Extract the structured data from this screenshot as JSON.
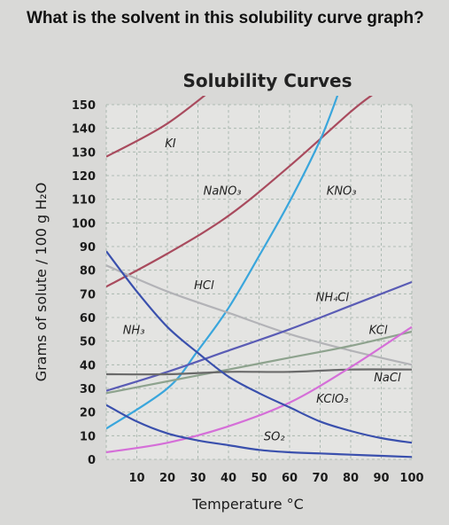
{
  "question": "What is the solvent in this solubility curve graph?",
  "chart_data": {
    "type": "line",
    "title": "Solubility Curves",
    "xlabel": "Temperature °C",
    "ylabel": "Grams of solute / 100 g H₂O",
    "xlim": [
      0,
      100
    ],
    "ylim": [
      0,
      150
    ],
    "x_ticks": [
      "10",
      "20",
      "30",
      "40",
      "50",
      "60",
      "70",
      "80",
      "90",
      "100"
    ],
    "y_ticks": [
      "0",
      "10",
      "20",
      "30",
      "40",
      "50",
      "60",
      "70",
      "80",
      "90",
      "100",
      "110",
      "120",
      "130",
      "140",
      "150"
    ],
    "grid": true,
    "series": [
      {
        "name": "KI",
        "color": "#a94b5e",
        "points": [
          [
            0,
            128
          ],
          [
            20,
            142
          ],
          [
            40,
            162
          ]
        ]
      },
      {
        "name": "NaNO₃",
        "color": "#a94b5e",
        "points": [
          [
            0,
            73
          ],
          [
            20,
            87
          ],
          [
            40,
            103
          ],
          [
            60,
            124
          ],
          [
            80,
            147
          ],
          [
            88,
            155
          ]
        ]
      },
      {
        "name": "KNO₃",
        "color": "#3aa6dc",
        "points": [
          [
            0,
            13
          ],
          [
            20,
            30
          ],
          [
            30,
            46
          ],
          [
            40,
            64
          ],
          [
            50,
            86
          ],
          [
            60,
            109
          ],
          [
            70,
            135
          ],
          [
            76,
            155
          ]
        ]
      },
      {
        "name": "HCl",
        "color": "#b3b3b7",
        "points": [
          [
            0,
            82
          ],
          [
            20,
            71
          ],
          [
            40,
            62
          ],
          [
            60,
            53
          ],
          [
            80,
            46
          ],
          [
            100,
            40
          ]
        ]
      },
      {
        "name": "NH₄Cl",
        "color": "#5a5cb5",
        "points": [
          [
            0,
            29
          ],
          [
            20,
            37
          ],
          [
            40,
            46
          ],
          [
            60,
            55
          ],
          [
            80,
            65
          ],
          [
            100,
            75
          ]
        ]
      },
      {
        "name": "KCl",
        "color": "#8ea38e",
        "points": [
          [
            0,
            28
          ],
          [
            20,
            33
          ],
          [
            40,
            38
          ],
          [
            60,
            43
          ],
          [
            80,
            48
          ],
          [
            100,
            54
          ]
        ]
      },
      {
        "name": "NaCl",
        "color": "#6a6a6a",
        "points": [
          [
            0,
            36
          ],
          [
            20,
            36
          ],
          [
            40,
            37
          ],
          [
            60,
            37
          ],
          [
            80,
            38
          ],
          [
            100,
            38
          ]
        ]
      },
      {
        "name": "KClO₃",
        "color": "#d56fd8",
        "points": [
          [
            0,
            3
          ],
          [
            20,
            7
          ],
          [
            40,
            14
          ],
          [
            60,
            24
          ],
          [
            80,
            39
          ],
          [
            100,
            56
          ]
        ]
      },
      {
        "name": "NH₃",
        "color": "#3a50ad",
        "points": [
          [
            0,
            88
          ],
          [
            10,
            71
          ],
          [
            20,
            56
          ],
          [
            30,
            45
          ],
          [
            40,
            35
          ],
          [
            50,
            28
          ],
          [
            60,
            22
          ],
          [
            70,
            16
          ],
          [
            80,
            12
          ],
          [
            90,
            9
          ],
          [
            100,
            7
          ]
        ]
      },
      {
        "name": "SO₂",
        "color": "#3a50ad",
        "points": [
          [
            0,
            23
          ],
          [
            10,
            16
          ],
          [
            20,
            11
          ],
          [
            30,
            8
          ],
          [
            40,
            6
          ],
          [
            50,
            4
          ],
          [
            60,
            3
          ],
          [
            70,
            2.5
          ],
          [
            80,
            2
          ],
          [
            90,
            1.5
          ],
          [
            100,
            1
          ]
        ]
      }
    ],
    "labels": [
      {
        "series": "KI",
        "x": 21,
        "y": 132
      },
      {
        "series": "NaNO₃",
        "x": 38,
        "y": 112
      },
      {
        "series": "KNO₃",
        "x": 77,
        "y": 112
      },
      {
        "series": "HCl",
        "x": 32,
        "y": 72
      },
      {
        "series": "NH₄Cl",
        "x": 74,
        "y": 67
      },
      {
        "series": "KCl",
        "x": 89,
        "y": 53
      },
      {
        "series": "NaCl",
        "x": 92,
        "y": 33
      },
      {
        "series": "KClO₃",
        "x": 74,
        "y": 24
      },
      {
        "series": "NH₃",
        "x": 9,
        "y": 53
      },
      {
        "series": "SO₂",
        "x": 55,
        "y": 8
      }
    ]
  }
}
